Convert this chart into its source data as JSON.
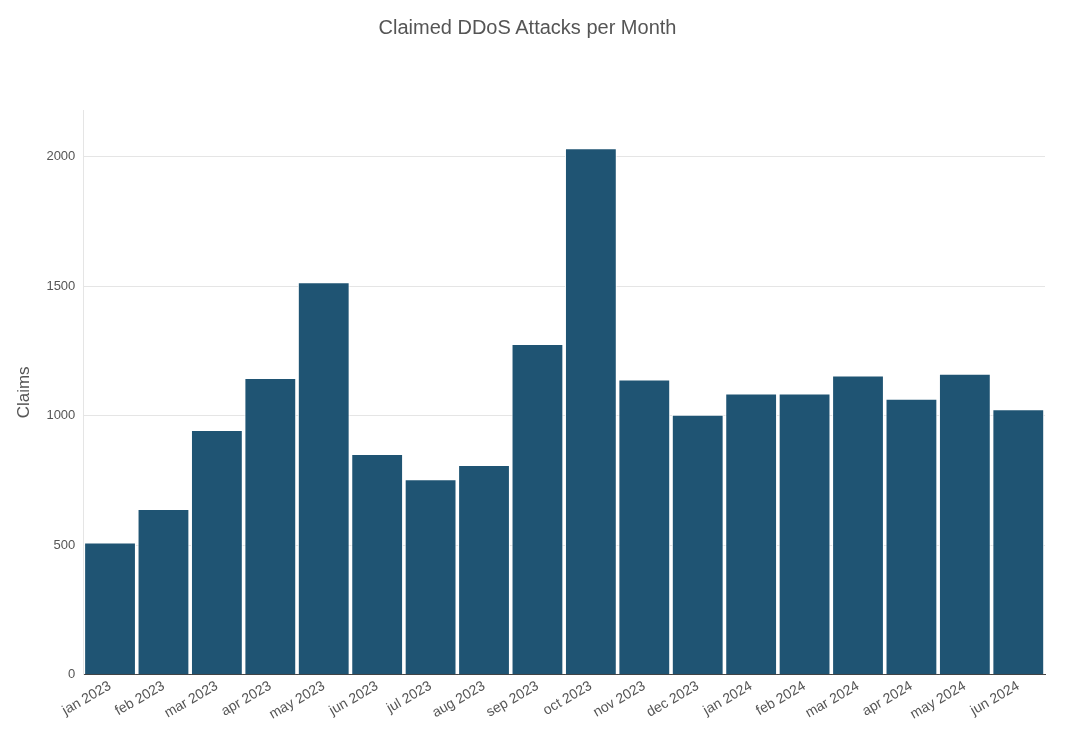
{
  "chart_data": {
    "type": "bar",
    "title": "Claimed DDoS Attacks per Month",
    "ylabel": "Claims",
    "categories": [
      "jan 2023",
      "feb 2023",
      "mar 2023",
      "apr 2023",
      "may 2023",
      "jun 2023",
      "jul 2023",
      "aug 2023",
      "sep 2023",
      "oct 2023",
      "nov 2023",
      "dec 2023",
      "jan 2024",
      "feb 2024",
      "mar 2024",
      "apr 2024",
      "may 2024",
      "jun 2024"
    ],
    "values": [
      510,
      640,
      945,
      1145,
      1515,
      852,
      755,
      810,
      1277,
      2032,
      1140,
      1004,
      1086,
      1086,
      1155,
      1065,
      1162,
      1025
    ],
    "color": "#1f5473",
    "ylim": [
      0,
      2180
    ],
    "yticks": [
      0,
      500,
      1000,
      1500,
      2000
    ],
    "grid": "y",
    "legend": false
  }
}
